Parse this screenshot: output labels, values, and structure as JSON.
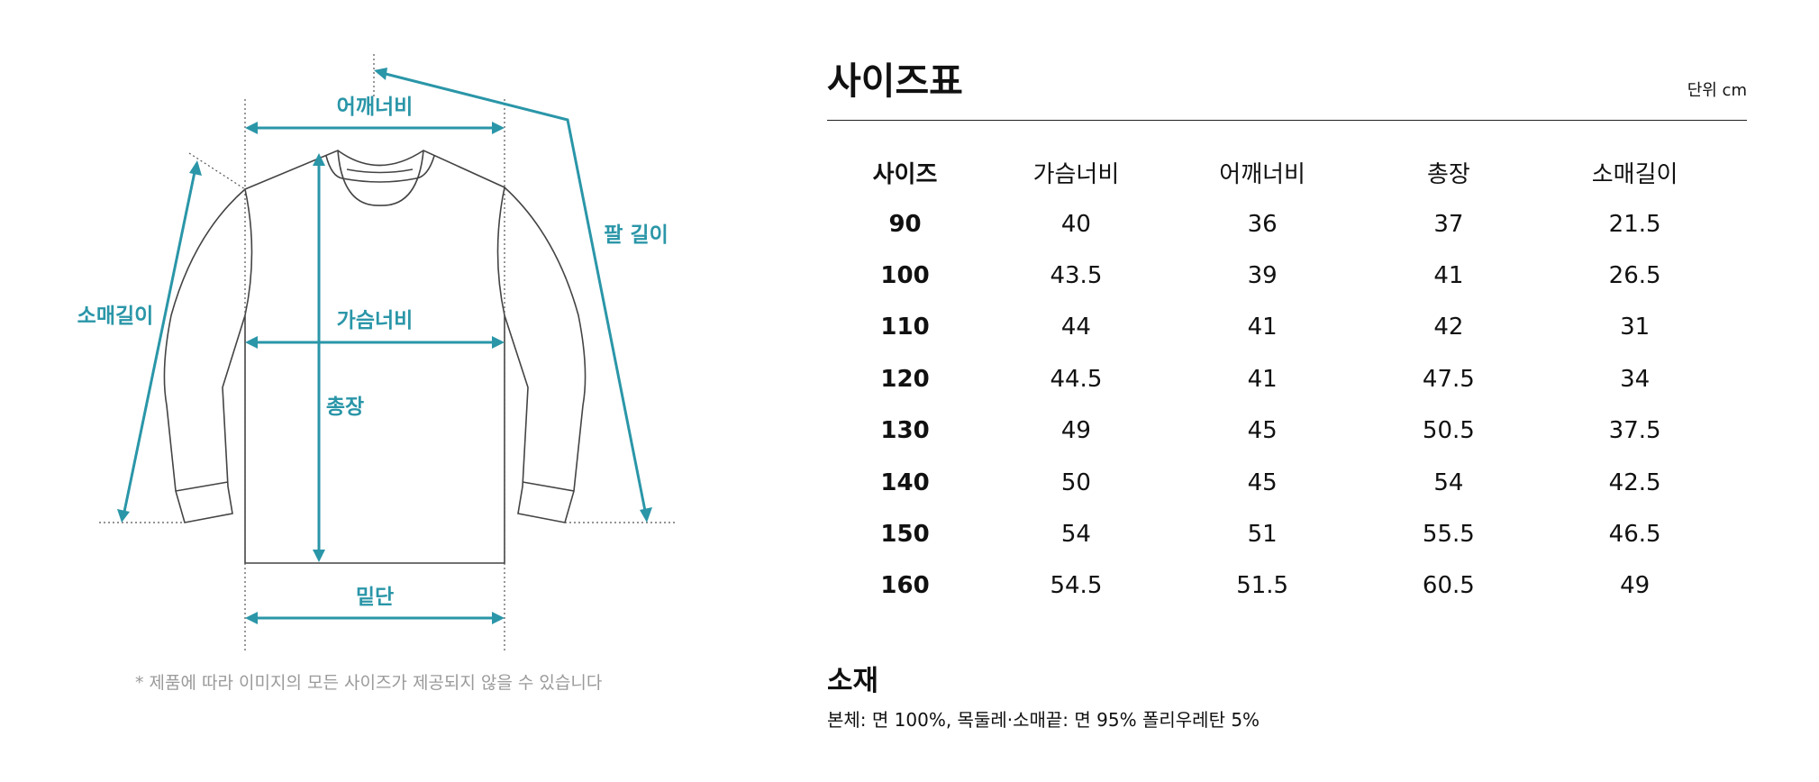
{
  "diagram": {
    "shoulder": "어깨너비",
    "arm": "팔 길이",
    "sleeve": "소매길이",
    "chest": "가슴너비",
    "length": "총장",
    "hem": "밑단"
  },
  "note": "* 제품에 따라 이미지의 모든 사이즈가 제공되지 않을 수 있습니다",
  "size_chart": {
    "title": "사이즈표",
    "unit": "단위 cm",
    "headers": [
      "사이즈",
      "가슴너비",
      "어깨너비",
      "총장",
      "소매길이"
    ],
    "rows": [
      [
        "90",
        "40",
        "36",
        "37",
        "21.5"
      ],
      [
        "100",
        "43.5",
        "39",
        "41",
        "26.5"
      ],
      [
        "110",
        "44",
        "41",
        "42",
        "31"
      ],
      [
        "120",
        "44.5",
        "41",
        "47.5",
        "34"
      ],
      [
        "130",
        "49",
        "45",
        "50.5",
        "37.5"
      ],
      [
        "140",
        "50",
        "45",
        "54",
        "42.5"
      ],
      [
        "150",
        "54",
        "51",
        "55.5",
        "46.5"
      ],
      [
        "160",
        "54.5",
        "51.5",
        "60.5",
        "49"
      ]
    ]
  },
  "material": {
    "title": "소재",
    "text": "본체: 면 100%, 목둘레·소매끝: 면 95% 폴리우레탄 5%"
  },
  "colors": {
    "accent": "#2a96a8",
    "text": "#111111",
    "note": "#9a9a9a"
  }
}
